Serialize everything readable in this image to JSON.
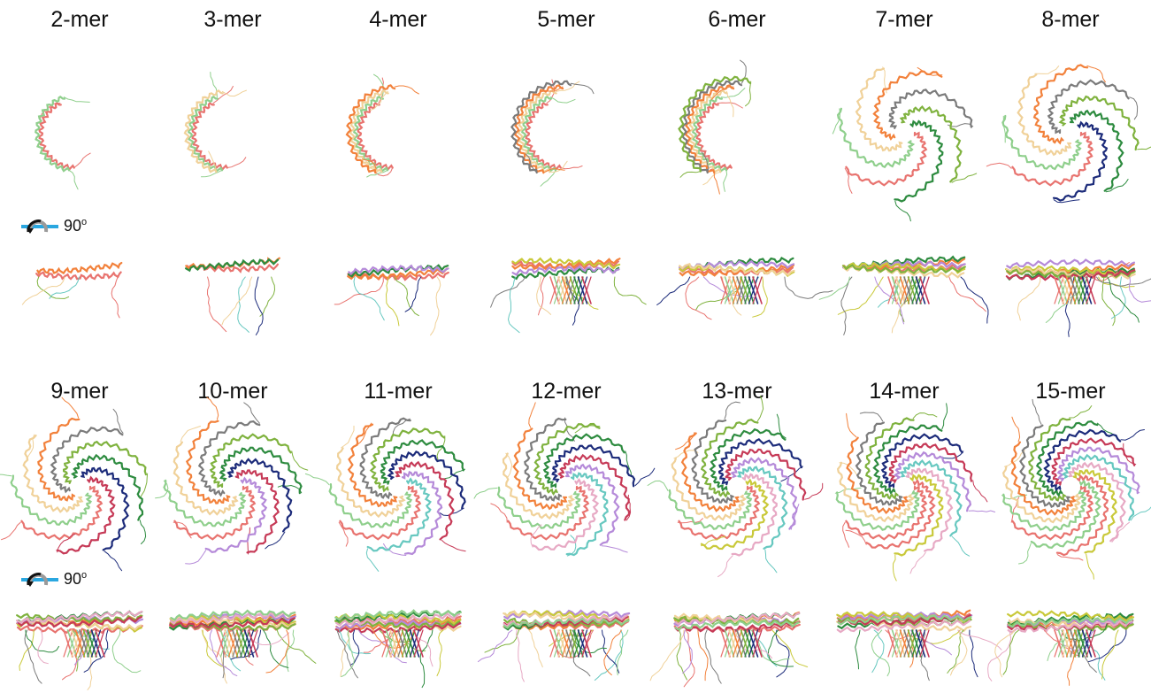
{
  "figure": {
    "row1_labels": [
      "2-mer",
      "3-mer",
      "4-mer",
      "5-mer",
      "6-mer",
      "7-mer",
      "8-mer"
    ],
    "row2_labels": [
      "9-mer",
      "10-mer",
      "11-mer",
      "12-mer",
      "13-mer",
      "14-mer",
      "15-mer"
    ],
    "rotation_label": "90",
    "rotation_unit": "o",
    "panel_icons": [
      "ribbon-helix-structure"
    ],
    "palette": [
      "#e8736f",
      "#8fcf8c",
      "#f0d199",
      "#f2813b",
      "#7b7b7b",
      "#7fb23e",
      "#2d8b3f",
      "#1c2b7a",
      "#c63a57",
      "#b58ad9",
      "#67c8c0",
      "#e7a9c4",
      "#c9c93a"
    ]
  }
}
